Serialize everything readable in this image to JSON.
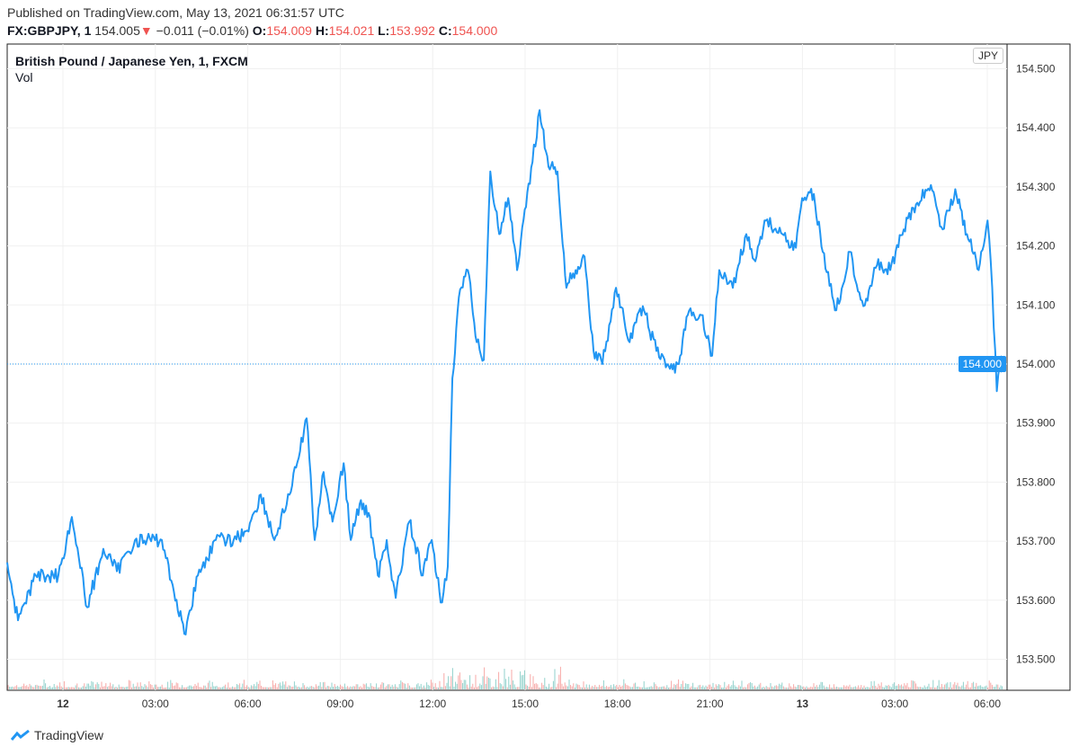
{
  "header": {
    "published": "Published on TradingView.com, May 13, 2021 06:31:57 UTC",
    "symbol": "FX:GBPJPY, 1",
    "last": "154.005",
    "change": "−0.011 (−0.01%)",
    "o_label": "O:",
    "o": "154.009",
    "h_label": "H:",
    "h": "154.021",
    "l_label": "L:",
    "l": "153.992",
    "c_label": "C:",
    "c": "154.000"
  },
  "legend": {
    "title": "British Pound / Japanese Yen, 1, FXCM",
    "vol": "Vol"
  },
  "currency": "JPY",
  "price_tag": "154.000",
  "brand": "TradingView",
  "colors": {
    "line": "#2196f3",
    "down": "#ef5350",
    "up": "#26a69a"
  },
  "chart_data": {
    "type": "line",
    "title": "British Pound / Japanese Yen, 1, FXCM",
    "xlabel": "",
    "ylabel": "",
    "ylim": [
      153.46,
      154.54
    ],
    "xlim_hours": [
      -1.81,
      30.7
    ],
    "yticks": [
      "154.500",
      "154.400",
      "154.300",
      "154.200",
      "154.100",
      "154.000",
      "153.900",
      "153.800",
      "153.700",
      "153.600",
      "153.500"
    ],
    "xticks": [
      {
        "h": 0,
        "label": "12"
      },
      {
        "h": 3,
        "label": "03:00"
      },
      {
        "h": 6,
        "label": "06:00"
      },
      {
        "h": 9,
        "label": "09:00"
      },
      {
        "h": 12,
        "label": "12:00"
      },
      {
        "h": 15,
        "label": "15:00"
      },
      {
        "h": 18,
        "label": "18:00"
      },
      {
        "h": 21,
        "label": "21:00"
      },
      {
        "h": 24,
        "label": "13"
      },
      {
        "h": 27,
        "label": "03:00"
      },
      {
        "h": 30,
        "label": "06:00"
      }
    ],
    "last_price": 154.0,
    "series": [
      {
        "name": "GBPJPY",
        "points": [
          [
            -1.81,
            153.664
          ],
          [
            -1.46,
            153.566
          ],
          [
            -0.88,
            153.642
          ],
          [
            -0.15,
            153.642
          ],
          [
            0.29,
            153.741
          ],
          [
            0.79,
            153.588
          ],
          [
            1.31,
            153.687
          ],
          [
            1.75,
            153.649
          ],
          [
            2.34,
            153.702
          ],
          [
            3.21,
            153.702
          ],
          [
            3.56,
            153.626
          ],
          [
            3.94,
            153.543
          ],
          [
            4.38,
            153.642
          ],
          [
            4.96,
            153.702
          ],
          [
            5.54,
            153.702
          ],
          [
            5.98,
            153.718
          ],
          [
            6.42,
            153.779
          ],
          [
            6.86,
            153.702
          ],
          [
            7.44,
            153.794
          ],
          [
            7.91,
            153.908
          ],
          [
            8.17,
            153.702
          ],
          [
            8.46,
            153.817
          ],
          [
            8.75,
            153.733
          ],
          [
            9.11,
            153.832
          ],
          [
            9.34,
            153.702
          ],
          [
            9.63,
            153.763
          ],
          [
            9.92,
            153.748
          ],
          [
            10.22,
            153.642
          ],
          [
            10.51,
            153.702
          ],
          [
            10.8,
            153.604
          ],
          [
            11.24,
            153.733
          ],
          [
            11.68,
            153.642
          ],
          [
            11.97,
            153.702
          ],
          [
            12.26,
            153.596
          ],
          [
            12.49,
            153.657
          ],
          [
            12.64,
            153.976
          ],
          [
            12.85,
            154.113
          ],
          [
            13.14,
            154.159
          ],
          [
            13.43,
            154.037
          ],
          [
            13.66,
            154.007
          ],
          [
            13.87,
            154.326
          ],
          [
            14.16,
            154.22
          ],
          [
            14.45,
            154.281
          ],
          [
            14.74,
            154.159
          ],
          [
            15.03,
            154.266
          ],
          [
            15.24,
            154.342
          ],
          [
            15.47,
            154.43
          ],
          [
            15.76,
            154.334
          ],
          [
            16.05,
            154.326
          ],
          [
            16.34,
            154.129
          ],
          [
            16.64,
            154.159
          ],
          [
            16.93,
            154.182
          ],
          [
            17.22,
            154.022
          ],
          [
            17.51,
            154.0
          ],
          [
            17.95,
            154.129
          ],
          [
            18.39,
            154.037
          ],
          [
            18.82,
            154.098
          ],
          [
            19.26,
            154.022
          ],
          [
            19.7,
            153.992
          ],
          [
            19.99,
            154.0
          ],
          [
            20.28,
            154.083
          ],
          [
            20.72,
            154.083
          ],
          [
            21.07,
            154.014
          ],
          [
            21.3,
            154.159
          ],
          [
            21.74,
            154.129
          ],
          [
            22.18,
            154.22
          ],
          [
            22.47,
            154.174
          ],
          [
            22.77,
            154.243
          ],
          [
            23.35,
            154.22
          ],
          [
            23.79,
            154.197
          ],
          [
            23.99,
            154.281
          ],
          [
            24.37,
            154.288
          ],
          [
            24.66,
            154.19
          ],
          [
            25.1,
            154.091
          ],
          [
            25.54,
            154.19
          ],
          [
            25.98,
            154.098
          ],
          [
            26.42,
            154.167
          ],
          [
            26.85,
            154.159
          ],
          [
            27.29,
            154.228
          ],
          [
            27.73,
            154.273
          ],
          [
            28.17,
            154.303
          ],
          [
            28.55,
            154.228
          ],
          [
            28.96,
            154.296
          ],
          [
            29.34,
            154.22
          ],
          [
            29.72,
            154.159
          ],
          [
            30.01,
            154.243
          ],
          [
            30.16,
            154.129
          ],
          [
            30.31,
            153.954
          ],
          [
            30.45,
            154.007
          ]
        ]
      }
    ]
  }
}
